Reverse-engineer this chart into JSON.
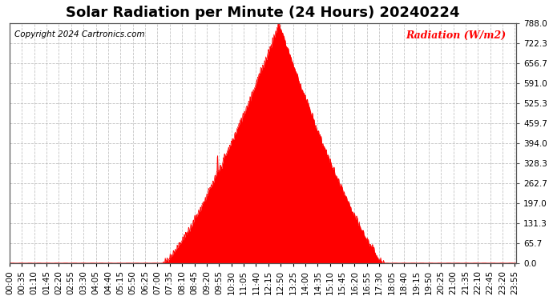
{
  "title": "Solar Radiation per Minute (24 Hours) 20240224",
  "ylabel": "Radiation (W/m2)",
  "copyright_text": "Copyright 2024 Cartronics.com",
  "background_color": "#ffffff",
  "plot_bg_color": "#ffffff",
  "line_color": "#ff0000",
  "fill_color": "#ff0000",
  "grid_color": "#aaaaaa",
  "ylim": [
    0.0,
    788.0
  ],
  "yticks": [
    0.0,
    65.7,
    131.3,
    197.0,
    262.7,
    328.3,
    394.0,
    459.7,
    525.3,
    591.0,
    656.7,
    722.3,
    788.0
  ],
  "total_minutes": 1440,
  "sunrise_minute": 435,
  "sunset_minute": 1065,
  "peak_minute": 765,
  "peak_value": 788.0,
  "xtick_interval": 35,
  "title_fontsize": 13,
  "label_fontsize": 9,
  "tick_fontsize": 7.5
}
